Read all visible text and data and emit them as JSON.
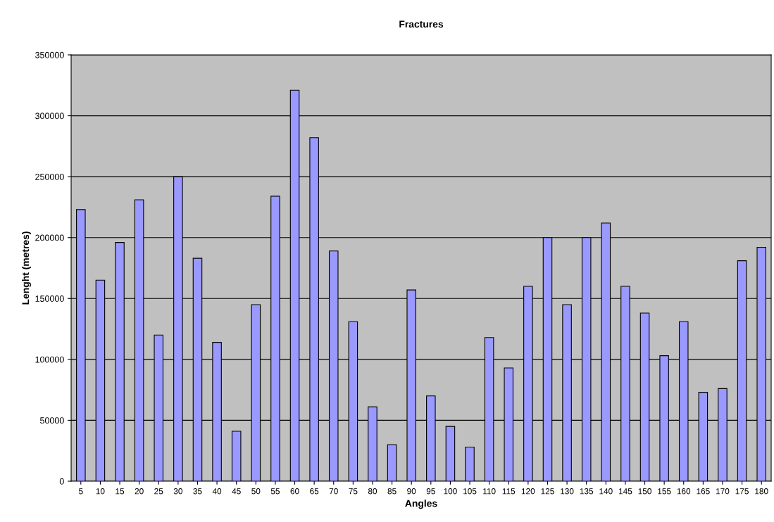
{
  "chart_data": {
    "type": "bar",
    "title": "Fractures",
    "xlabel": "Angles",
    "ylabel": "Lenght (metres)",
    "categories": [
      "5",
      "10",
      "15",
      "20",
      "25",
      "30",
      "35",
      "40",
      "45",
      "50",
      "55",
      "60",
      "65",
      "70",
      "75",
      "80",
      "85",
      "90",
      "95",
      "100",
      "105",
      "110",
      "115",
      "120",
      "125",
      "130",
      "135",
      "140",
      "145",
      "150",
      "155",
      "160",
      "165",
      "170",
      "175",
      "180"
    ],
    "values": [
      223000,
      165000,
      196000,
      231000,
      120000,
      250000,
      183000,
      114000,
      41000,
      145000,
      234000,
      321000,
      282000,
      189000,
      131000,
      61000,
      30000,
      157000,
      70000,
      45000,
      28000,
      118000,
      93000,
      160000,
      200000,
      145000,
      200000,
      212000,
      160000,
      138000,
      103000,
      131000,
      73000,
      76000,
      181000,
      192000
    ],
    "color": "#9999ff",
    "ylim": [
      0,
      350000
    ],
    "yticks": [
      0,
      50000,
      100000,
      150000,
      200000,
      250000,
      300000,
      350000
    ],
    "grid": "y",
    "legend": false
  }
}
